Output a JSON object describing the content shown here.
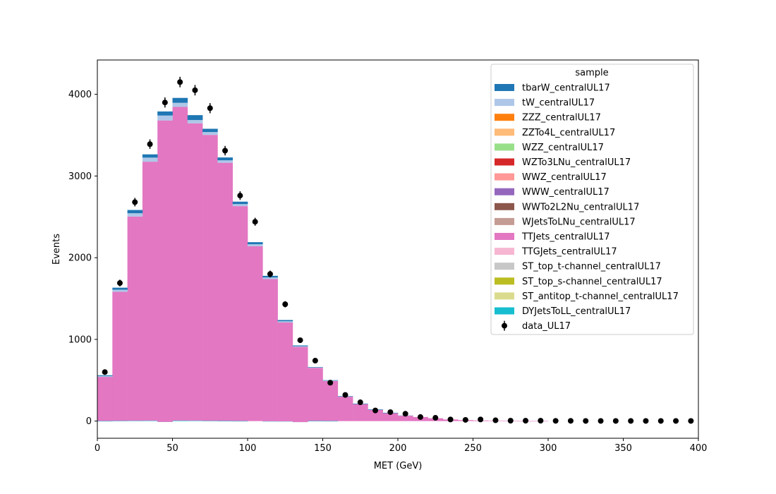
{
  "chart_data": {
    "type": "bar",
    "subtype": "stacked-histogram-with-data-points",
    "xlabel": "MET (GeV)",
    "ylabel": "Events",
    "xlim": [
      0,
      400
    ],
    "ylim": [
      -210,
      4420
    ],
    "xticks": [
      0,
      50,
      100,
      150,
      200,
      250,
      300,
      350,
      400
    ],
    "yticks": [
      0,
      1000,
      2000,
      3000,
      4000
    ],
    "grid": false,
    "legend_title": "sample",
    "legend_position": "top-right",
    "bin_edges": [
      0,
      10,
      20,
      30,
      40,
      50,
      60,
      70,
      80,
      90,
      100,
      110,
      120,
      130,
      140,
      150,
      160,
      170,
      180,
      190,
      200,
      210,
      220,
      230,
      240,
      250,
      260,
      270,
      280,
      290,
      300,
      310,
      320,
      330,
      340,
      350,
      360,
      370,
      380,
      390,
      400
    ],
    "series": [
      {
        "name": "DYJetsToLL_centralUL17",
        "color": "#17becf",
        "values": [
          1,
          3,
          4,
          5,
          -10,
          6,
          5,
          3,
          2,
          1,
          0,
          -2,
          -3,
          -12,
          2,
          1,
          0,
          0,
          0,
          0,
          0,
          0,
          0,
          0,
          0,
          0,
          0,
          0,
          0,
          0,
          0,
          0,
          0,
          0,
          0,
          0,
          0,
          0,
          0,
          0
        ]
      },
      {
        "name": "ST_antitop_t-channel_centralUL17",
        "color": "#dbdb8d",
        "values": [
          0,
          0,
          0,
          0,
          0,
          0,
          0,
          0,
          0,
          0,
          0,
          0,
          0,
          0,
          0,
          0,
          0,
          0,
          0,
          0,
          0,
          0,
          0,
          0,
          0,
          0,
          0,
          0,
          0,
          0,
          0,
          0,
          0,
          0,
          0,
          0,
          0,
          0,
          0,
          0
        ]
      },
      {
        "name": "ST_top_s-channel_centralUL17",
        "color": "#bcbd22",
        "values": [
          0,
          0,
          0,
          0,
          0,
          0,
          0,
          0,
          0,
          0,
          0,
          0,
          0,
          0,
          0,
          0,
          0,
          0,
          0,
          0,
          0,
          0,
          0,
          0,
          0,
          0,
          0,
          0,
          0,
          0,
          0,
          0,
          0,
          0,
          0,
          0,
          0,
          0,
          0,
          0
        ]
      },
      {
        "name": "ST_top_t-channel_centralUL17",
        "color": "#c7c7c7",
        "values": [
          0,
          0,
          0,
          0,
          0,
          0,
          0,
          0,
          0,
          0,
          0,
          0,
          0,
          0,
          0,
          0,
          0,
          0,
          0,
          0,
          0,
          0,
          0,
          0,
          0,
          0,
          0,
          0,
          0,
          0,
          0,
          0,
          0,
          0,
          0,
          0,
          0,
          0,
          0,
          0
        ]
      },
      {
        "name": "TTGJets_centralUL17",
        "color": "#f7b6d2",
        "values": [
          0,
          0,
          0,
          0,
          0,
          0,
          0,
          0,
          0,
          0,
          0,
          0,
          0,
          0,
          0,
          0,
          0,
          0,
          0,
          0,
          0,
          0,
          0,
          0,
          0,
          0,
          0,
          0,
          0,
          0,
          0,
          0,
          0,
          0,
          0,
          0,
          0,
          0,
          0,
          0
        ]
      },
      {
        "name": "TTJets_centralUL17",
        "color": "#e377c2",
        "values": [
          540,
          1580,
          2500,
          3170,
          3690,
          3840,
          3640,
          3500,
          3160,
          2630,
          2140,
          1740,
          1210,
          920,
          650,
          490,
          300,
          210,
          140,
          100,
          70,
          50,
          35,
          20,
          12,
          8,
          4,
          2,
          1,
          1,
          0,
          0,
          0,
          0,
          0,
          0,
          0,
          0,
          0,
          0
        ]
      },
      {
        "name": "WJetsToLNu_centralUL17",
        "color": "#c49c94",
        "values": [
          0,
          0,
          0,
          0,
          0,
          0,
          0,
          0,
          0,
          0,
          0,
          0,
          0,
          0,
          0,
          0,
          0,
          0,
          0,
          0,
          0,
          0,
          0,
          0,
          0,
          0,
          0,
          0,
          0,
          0,
          0,
          0,
          0,
          0,
          0,
          0,
          0,
          0,
          0,
          0
        ]
      },
      {
        "name": "WWTo2L2Nu_centralUL17",
        "color": "#8c564b",
        "values": [
          0,
          0,
          0,
          0,
          0,
          0,
          0,
          0,
          0,
          0,
          0,
          0,
          0,
          0,
          0,
          0,
          0,
          0,
          0,
          0,
          0,
          0,
          0,
          0,
          0,
          0,
          0,
          0,
          0,
          0,
          0,
          0,
          0,
          0,
          0,
          0,
          0,
          0,
          0,
          0
        ]
      },
      {
        "name": "WWW_centralUL17",
        "color": "#9467bd",
        "values": [
          0,
          0,
          0,
          0,
          0,
          0,
          0,
          0,
          0,
          0,
          0,
          0,
          0,
          0,
          0,
          0,
          0,
          0,
          0,
          0,
          0,
          0,
          0,
          0,
          0,
          0,
          0,
          0,
          0,
          0,
          0,
          0,
          0,
          0,
          0,
          0,
          0,
          0,
          0,
          0
        ]
      },
      {
        "name": "WWZ_centralUL17",
        "color": "#ff9896",
        "values": [
          0,
          0,
          0,
          0,
          0,
          0,
          0,
          0,
          0,
          0,
          0,
          0,
          0,
          0,
          0,
          0,
          0,
          0,
          0,
          0,
          0,
          0,
          0,
          0,
          0,
          0,
          0,
          0,
          0,
          0,
          0,
          0,
          0,
          0,
          0,
          0,
          0,
          0,
          0,
          0
        ]
      },
      {
        "name": "WZTo3LNu_centralUL17",
        "color": "#d62728",
        "values": [
          0,
          0,
          0,
          0,
          0,
          0,
          0,
          0,
          0,
          0,
          0,
          0,
          0,
          0,
          0,
          0,
          0,
          0,
          0,
          0,
          0,
          0,
          0,
          0,
          0,
          0,
          0,
          0,
          0,
          0,
          0,
          0,
          0,
          0,
          0,
          0,
          0,
          0,
          0,
          0
        ]
      },
      {
        "name": "WZZ_centralUL17",
        "color": "#98df8a",
        "values": [
          0,
          0,
          0,
          0,
          0,
          0,
          0,
          0,
          0,
          0,
          0,
          0,
          0,
          0,
          0,
          0,
          0,
          0,
          0,
          0,
          0,
          0,
          0,
          0,
          0,
          0,
          0,
          0,
          0,
          0,
          0,
          0,
          0,
          0,
          0,
          0,
          0,
          0,
          0,
          0
        ]
      },
      {
        "name": "ZZTo4L_centralUL17",
        "color": "#ffbb78",
        "values": [
          0,
          0,
          0,
          0,
          0,
          0,
          0,
          0,
          0,
          0,
          0,
          0,
          0,
          0,
          0,
          0,
          0,
          0,
          0,
          0,
          0,
          0,
          0,
          0,
          0,
          0,
          0,
          0,
          0,
          0,
          0,
          0,
          0,
          0,
          0,
          0,
          0,
          0,
          0,
          0
        ]
      },
      {
        "name": "ZZZ_centralUL17",
        "color": "#ff7f0e",
        "values": [
          0,
          0,
          0,
          0,
          0,
          0,
          0,
          0,
          0,
          0,
          0,
          0,
          0,
          0,
          0,
          0,
          0,
          0,
          0,
          0,
          0,
          0,
          0,
          0,
          0,
          0,
          0,
          0,
          0,
          0,
          0,
          0,
          0,
          0,
          0,
          0,
          0,
          0,
          0,
          0
        ]
      },
      {
        "name": "tW_centralUL17",
        "color": "#aec7e8",
        "values": [
          10,
          25,
          40,
          50,
          60,
          50,
          40,
          35,
          30,
          25,
          25,
          20,
          15,
          8,
          5,
          5,
          3,
          2,
          2,
          1,
          1,
          0,
          0,
          0,
          0,
          0,
          0,
          0,
          0,
          0,
          0,
          0,
          0,
          0,
          0,
          0,
          0,
          0,
          0,
          0
        ]
      },
      {
        "name": "tbarW_centralUL17",
        "color": "#1f77b4",
        "values": [
          10,
          25,
          40,
          40,
          50,
          60,
          60,
          40,
          35,
          30,
          25,
          20,
          15,
          10,
          5,
          5,
          3,
          2,
          1,
          1,
          0,
          0,
          0,
          0,
          0,
          0,
          0,
          0,
          0,
          0,
          0,
          0,
          0,
          0,
          0,
          0,
          0,
          0,
          0,
          0
        ]
      }
    ],
    "data_points": {
      "name": "data_UL17",
      "color": "#000000",
      "x": [
        5,
        15,
        25,
        35,
        45,
        55,
        65,
        75,
        85,
        95,
        105,
        115,
        125,
        135,
        145,
        155,
        165,
        175,
        185,
        195,
        205,
        215,
        225,
        235,
        245,
        255,
        265,
        275,
        285,
        295,
        305,
        315,
        325,
        335,
        345,
        355,
        365,
        375,
        385,
        395
      ],
      "y": [
        600,
        1690,
        2680,
        3390,
        3900,
        4150,
        4050,
        3830,
        3310,
        2760,
        2440,
        1800,
        1430,
        990,
        740,
        470,
        320,
        230,
        130,
        110,
        90,
        50,
        40,
        20,
        15,
        20,
        10,
        5,
        5,
        5,
        3,
        3,
        2,
        2,
        2,
        2,
        2,
        2,
        2,
        2
      ],
      "yerr": [
        24,
        41,
        52,
        58,
        62,
        64,
        64,
        62,
        58,
        53,
        49,
        42,
        38,
        31,
        27,
        22,
        18,
        15,
        11,
        10,
        9,
        7,
        6,
        4,
        4,
        4,
        3,
        2,
        2,
        2,
        2,
        2,
        1,
        1,
        1,
        1,
        1,
        1,
        1,
        1
      ]
    }
  }
}
